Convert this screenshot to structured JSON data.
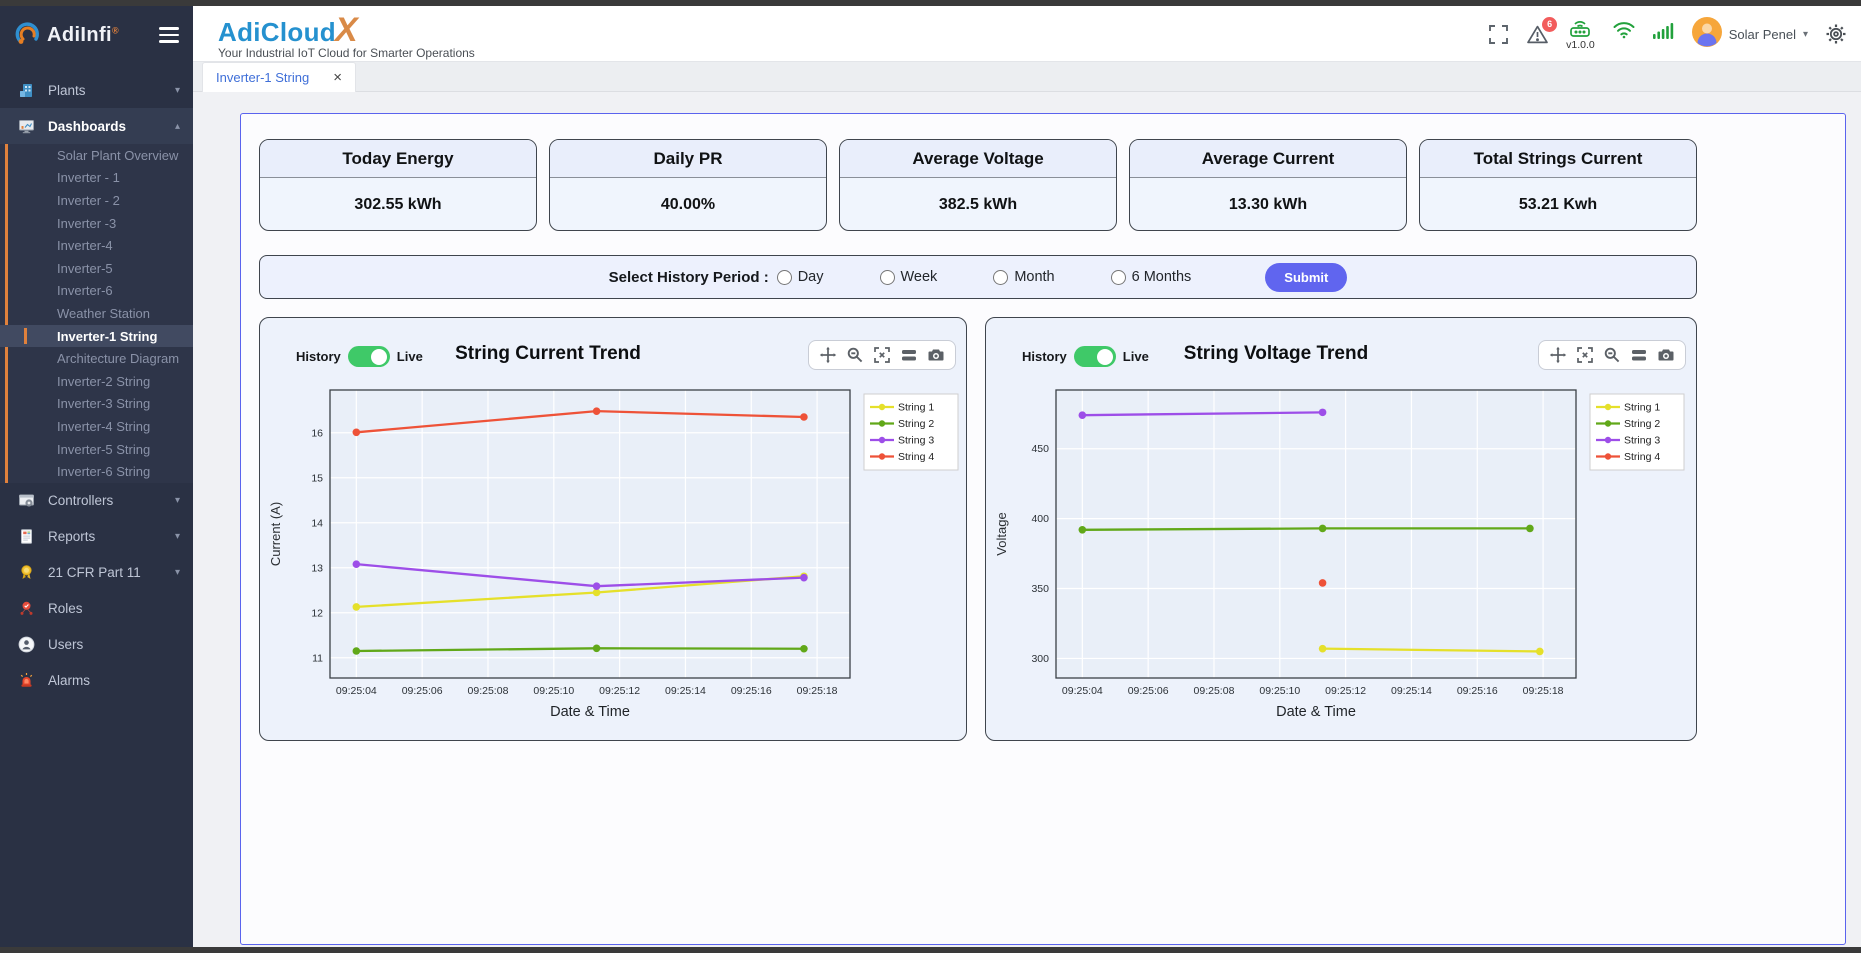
{
  "sidebar": {
    "logo_text": "AdiInfi",
    "logo_reg": "®",
    "items": {
      "plants": "Plants",
      "dashboards": "Dashboards",
      "controllers": "Controllers",
      "reports": "Reports",
      "cfr": "21 CFR Part 11",
      "roles": "Roles",
      "users": "Users",
      "alarms": "Alarms"
    },
    "children": [
      "Solar Plant Overview",
      "Inverter - 1",
      "Inverter - 2",
      "Inverter -3",
      "Inverter-4",
      "Inverter-5",
      "Inverter-6",
      "Weather Station",
      "Inverter-1 String",
      "Architecture Diagram",
      "Inverter-2 String",
      "Inverter-3 String",
      "Inverter-4 String",
      "Inverter-5 String",
      "Inverter-6 String"
    ],
    "active_child": "Inverter-1 String"
  },
  "header": {
    "brand": "AdiCloud",
    "brand_x": "X",
    "tagline": "Your Industrial IoT Cloud for Smarter Operations",
    "alarm_badge": "6",
    "version": "v1.0.0",
    "user_name": "Solar Penel"
  },
  "tab": {
    "label": "Inverter-1 String"
  },
  "kpis": [
    {
      "title": "Today Energy",
      "value": "302.55 kWh"
    },
    {
      "title": "Daily PR",
      "value": "40.00%"
    },
    {
      "title": "Average Voltage",
      "value": "382.5 kWh"
    },
    {
      "title": "Average Current",
      "value": "13.30 kWh"
    },
    {
      "title": "Total Strings Current",
      "value": "53.21 Kwh"
    }
  ],
  "period_selector": {
    "label": "Select History Period :",
    "options": [
      "Day",
      "Week",
      "Month",
      "6 Months"
    ],
    "submit_label": "Submit"
  },
  "chart_common": {
    "history_label": "History",
    "live_label": "Live"
  },
  "colors": {
    "accent_orange": "#e0813c",
    "brand_blue": "#2591cf",
    "brand_orange": "#d98a47",
    "panel_border": "#5a63ee",
    "submit": "#6065ef",
    "toggle_green": "#3fc968",
    "status_green": "#22a13c",
    "alarm_red": "#f25c5c"
  },
  "chart_data": [
    {
      "type": "line",
      "title": "String Current Trend",
      "xlabel": "Date & Time",
      "ylabel": "Current (A)",
      "time_base": "09:25",
      "grid": true,
      "legend_position": "right",
      "xlim": [
        3.2,
        19.0
      ],
      "ylim": [
        10.55,
        16.95
      ],
      "yticks": [
        11,
        12,
        13,
        14,
        15,
        16
      ],
      "xticks": [
        {
          "s": 4,
          "label": "09:25:04"
        },
        {
          "s": 6,
          "label": "09:25:06"
        },
        {
          "s": 8,
          "label": "09:25:08"
        },
        {
          "s": 10,
          "label": "09:25:10"
        },
        {
          "s": 12,
          "label": "09:25:12"
        },
        {
          "s": 14,
          "label": "09:25:14"
        },
        {
          "s": 16,
          "label": "09:25:16"
        },
        {
          "s": 18,
          "label": "09:25:18"
        }
      ],
      "series": [
        {
          "name": "String 1",
          "color": "#e5e02a",
          "x": [
            4,
            11.3,
            17.6
          ],
          "y": [
            12.13,
            12.45,
            12.81
          ]
        },
        {
          "name": "String 2",
          "color": "#61a819",
          "x": [
            4,
            11.3,
            17.6
          ],
          "y": [
            11.15,
            11.21,
            11.2
          ]
        },
        {
          "name": "String 3",
          "color": "#9d4ee8",
          "x": [
            4,
            11.3,
            17.6
          ],
          "y": [
            13.08,
            12.59,
            12.78
          ]
        },
        {
          "name": "String 4",
          "color": "#ee5238",
          "x": [
            4,
            11.3,
            17.6
          ],
          "y": [
            16.01,
            16.48,
            16.35
          ]
        }
      ]
    },
    {
      "type": "line",
      "title": "String Voltage Trend",
      "xlabel": "Date & Time",
      "ylabel": "Voltage",
      "time_base": "09:25",
      "grid": true,
      "legend_position": "right",
      "xlim": [
        3.2,
        19.0
      ],
      "ylim": [
        286,
        492
      ],
      "yticks": [
        300,
        350,
        400,
        450
      ],
      "xticks": [
        {
          "s": 4,
          "label": "09:25:04"
        },
        {
          "s": 6,
          "label": "09:25:06"
        },
        {
          "s": 8,
          "label": "09:25:08"
        },
        {
          "s": 10,
          "label": "09:25:10"
        },
        {
          "s": 12,
          "label": "09:25:12"
        },
        {
          "s": 14,
          "label": "09:25:14"
        },
        {
          "s": 16,
          "label": "09:25:16"
        },
        {
          "s": 18,
          "label": "09:25:18"
        }
      ],
      "series": [
        {
          "name": "String 1",
          "color": "#e5e02a",
          "x": [
            11.3,
            17.9
          ],
          "y": [
            307,
            305
          ]
        },
        {
          "name": "String 2",
          "color": "#61a819",
          "x": [
            4,
            11.3,
            17.6
          ],
          "y": [
            392,
            393,
            393
          ]
        },
        {
          "name": "String 3",
          "color": "#9d4ee8",
          "x": [
            4,
            11.3
          ],
          "y": [
            474,
            476
          ]
        },
        {
          "name": "String 4",
          "color": "#ee5238",
          "x": [
            11.3
          ],
          "y": [
            354
          ]
        }
      ]
    }
  ]
}
